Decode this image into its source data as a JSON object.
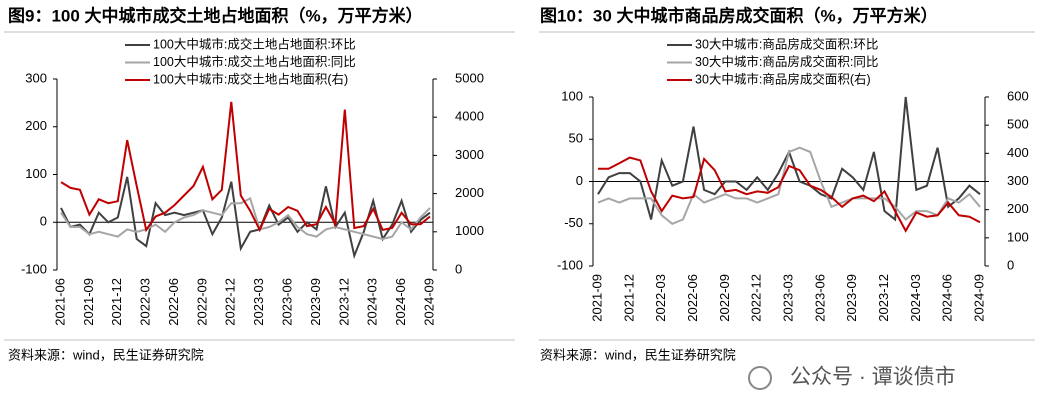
{
  "chart_data": [
    {
      "type": "line",
      "title": "图9：100 大中城市成交土地占地面积（%，万平方米）",
      "source": "资料来源：wind，民生证券研究院",
      "categories": [
        "2021-06",
        null,
        null,
        "2021-09",
        null,
        null,
        "2021-12",
        null,
        null,
        "2022-03",
        null,
        null,
        "2022-06",
        null,
        null,
        "2022-09",
        null,
        null,
        "2022-12",
        null,
        null,
        "2023-03",
        null,
        null,
        "2023-06",
        null,
        null,
        "2023-09",
        null,
        null,
        "2023-12",
        null,
        null,
        "2024-03",
        null,
        null,
        "2024-06",
        null,
        null,
        "2024-09"
      ],
      "ylim": [
        -100,
        300
      ],
      "yticks": [
        -100,
        0,
        100,
        200,
        300
      ],
      "y2lim": [
        0,
        5000
      ],
      "y2ticks": [
        0,
        1000,
        2000,
        3000,
        4000,
        5000
      ],
      "series": [
        {
          "name": "100大中城市:成交土地占地面积:环比",
          "color": "#404040",
          "values": [
            30,
            -10,
            -5,
            -25,
            20,
            0,
            10,
            95,
            -35,
            -50,
            40,
            15,
            20,
            15,
            20,
            25,
            -25,
            10,
            85,
            -55,
            -20,
            -15,
            35,
            -5,
            10,
            -20,
            0,
            -15,
            75,
            -10,
            20,
            -70,
            -20,
            45,
            -35,
            -5,
            45,
            -20,
            5,
            20
          ]
        },
        {
          "name": "100大中城市:成交土地占地面积:同比",
          "color": "#a6a6a6",
          "values": [
            20,
            -10,
            -10,
            -25,
            -20,
            -25,
            -30,
            -15,
            -20,
            -15,
            -5,
            -20,
            0,
            10,
            15,
            25,
            20,
            15,
            40,
            40,
            50,
            -15,
            -10,
            0,
            15,
            -10,
            -25,
            -30,
            -15,
            -10,
            -15,
            -20,
            -25,
            -30,
            -35,
            -30,
            0,
            -15,
            10,
            30
          ]
        },
        {
          "name": "100大中城市:成交土地占地面积(右)",
          "color": "#c00000",
          "axis": "y2",
          "values": [
            2300,
            2150,
            2100,
            1450,
            1850,
            1750,
            1800,
            3400,
            2200,
            1050,
            1400,
            1500,
            1700,
            1950,
            2200,
            2700,
            1850,
            2100,
            4400,
            1950,
            1550,
            1050,
            1600,
            1450,
            1650,
            1550,
            1150,
            1200,
            1650,
            1200,
            4200,
            1100,
            1150,
            1600,
            1050,
            1100,
            1500,
            1200,
            1200,
            1400
          ]
        }
      ]
    },
    {
      "type": "line",
      "title": "图10：30 大中城市商品房成交面积（%，万平方米）",
      "source": "资料来源：wind，民生证券研究院",
      "categories": [
        "2021-09",
        null,
        null,
        "2021-12",
        null,
        null,
        "2022-03",
        null,
        null,
        "2022-06",
        null,
        null,
        "2022-09",
        null,
        null,
        "2022-12",
        null,
        null,
        "2023-03",
        null,
        null,
        "2023-06",
        null,
        null,
        "2023-09",
        null,
        null,
        "2023-12",
        null,
        null,
        "2024-03",
        null,
        null,
        "2024-06",
        null,
        null,
        "2024-09"
      ],
      "ylim": [
        -100,
        100
      ],
      "yticks": [
        -100,
        -50,
        0,
        50,
        100
      ],
      "y2lim": [
        0,
        600
      ],
      "y2ticks": [
        0,
        100,
        200,
        300,
        400,
        500,
        600
      ],
      "series": [
        {
          "name": "30大中城市:商品房成交面积:环比",
          "color": "#404040",
          "values": [
            -15,
            5,
            10,
            10,
            0,
            -45,
            25,
            -5,
            0,
            65,
            -10,
            -15,
            0,
            0,
            -10,
            5,
            -10,
            10,
            35,
            0,
            -5,
            -15,
            -20,
            15,
            5,
            -10,
            35,
            -35,
            -45,
            100,
            -10,
            -5,
            40,
            -30,
            -20,
            -5,
            -15
          ]
        },
        {
          "name": "30大中城市:商品房成交面积:同比",
          "color": "#a6a6a6",
          "values": [
            -25,
            -20,
            -25,
            -20,
            -20,
            -20,
            -40,
            -50,
            -45,
            -15,
            -25,
            -20,
            -15,
            -20,
            -20,
            -25,
            -20,
            -15,
            35,
            40,
            35,
            0,
            -30,
            -25,
            -20,
            -20,
            -20,
            -20,
            -30,
            -45,
            -35,
            -35,
            -40,
            -20,
            -25,
            -15,
            -30
          ]
        },
        {
          "name": "30大中城市:商品房成交面积(右)",
          "color": "#c00000",
          "axis": "y2",
          "values": [
            345,
            345,
            365,
            385,
            375,
            265,
            195,
            250,
            240,
            245,
            380,
            340,
            265,
            270,
            255,
            265,
            260,
            280,
            355,
            340,
            285,
            270,
            245,
            210,
            240,
            250,
            230,
            265,
            195,
            125,
            190,
            175,
            180,
            225,
            180,
            175,
            155
          ]
        }
      ]
    }
  ],
  "watermark": "公众号 · 谭谈债市"
}
